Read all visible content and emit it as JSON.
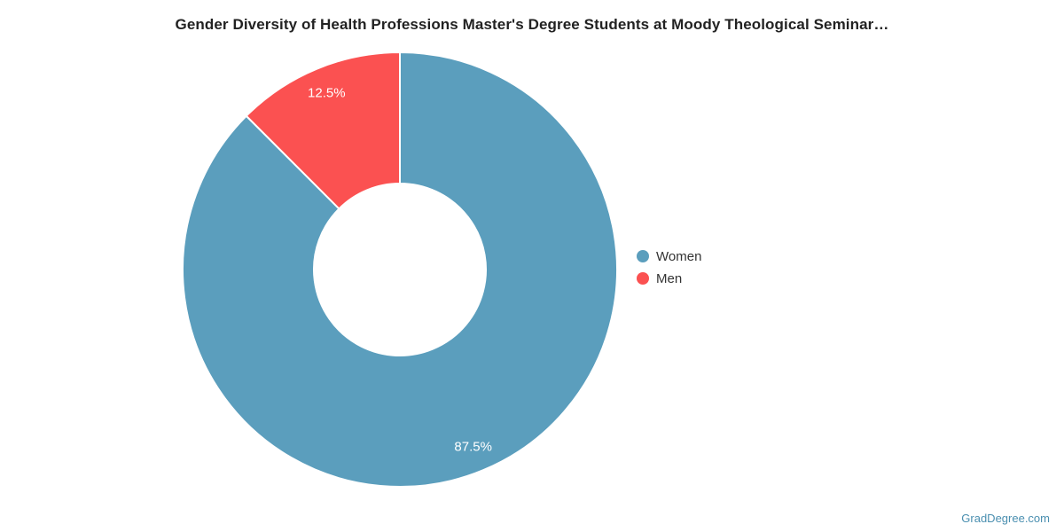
{
  "title": "Gender Diversity of Health Professions Master's Degree Students at Moody Theological Seminar…",
  "watermark": "GradDegree.com",
  "chart_data": {
    "type": "pie",
    "subtype": "donut",
    "title": "Gender Diversity of Health Professions Master's Degree Students at Moody Theological Seminar…",
    "categories": [
      "Women",
      "Men"
    ],
    "values": [
      87.5,
      12.5
    ],
    "data_labels": [
      "87.5%",
      "12.5%"
    ],
    "colors": [
      "#5b9ebd",
      "#fb5151"
    ],
    "data_label_color": "#ffffff",
    "start_angle_deg": 0,
    "direction": "clockwise",
    "legend_position": "right",
    "legend_entries": [
      "Women",
      "Men"
    ]
  }
}
